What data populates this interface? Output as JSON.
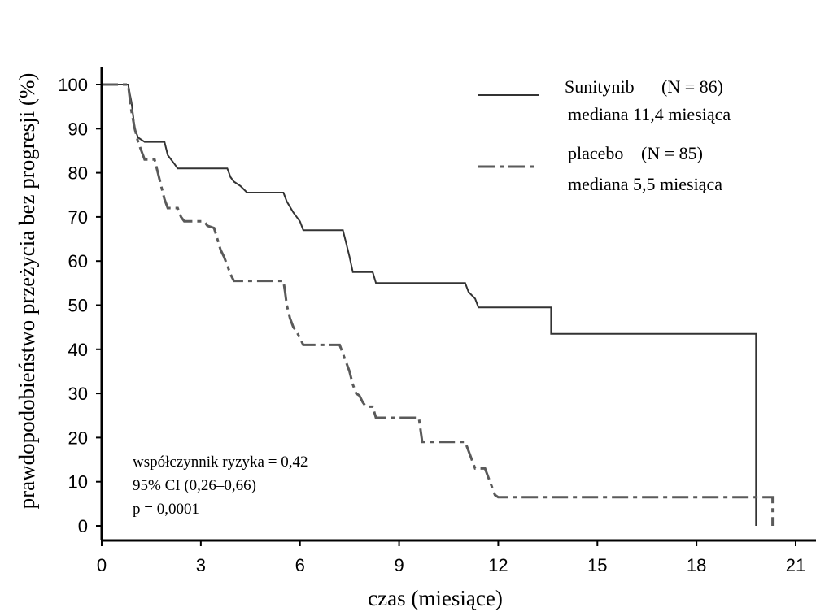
{
  "chart_data": {
    "type": "line",
    "xlabel": "czas (miesiące)",
    "ylabel": "prawdopodobieństwo przeżycia bez progresji (%)",
    "xlim": [
      0,
      21
    ],
    "ylim": [
      0,
      100
    ],
    "x_ticks": [
      "0",
      "3",
      "6",
      "9",
      "12",
      "15",
      "18",
      "21"
    ],
    "y_ticks": [
      "0",
      "10",
      "20",
      "30",
      "40",
      "50",
      "60",
      "70",
      "80",
      "90",
      "100"
    ],
    "grid": false,
    "legend_position": "top-right",
    "series": [
      {
        "name": "Sunitynib",
        "n_label": "(N = 86)",
        "median_label": "mediana 11,4 miesiąca",
        "color": "#333333",
        "style": "solid",
        "points": [
          [
            0,
            100
          ],
          [
            0.8,
            100
          ],
          [
            0.85,
            98
          ],
          [
            0.9,
            96
          ],
          [
            0.95,
            93
          ],
          [
            1.0,
            90
          ],
          [
            1.05,
            89
          ],
          [
            1.1,
            88
          ],
          [
            1.3,
            87
          ],
          [
            1.9,
            87
          ],
          [
            2.0,
            84
          ],
          [
            2.2,
            82
          ],
          [
            2.3,
            81
          ],
          [
            3.8,
            81
          ],
          [
            3.9,
            79
          ],
          [
            4.0,
            78
          ],
          [
            4.2,
            77
          ],
          [
            4.4,
            75.5
          ],
          [
            5.5,
            75.5
          ],
          [
            5.6,
            73.5
          ],
          [
            5.8,
            71
          ],
          [
            6.0,
            69
          ],
          [
            6.1,
            67
          ],
          [
            7.3,
            67
          ],
          [
            7.4,
            64
          ],
          [
            7.5,
            61
          ],
          [
            7.6,
            57.5
          ],
          [
            8.2,
            57.5
          ],
          [
            8.3,
            55
          ],
          [
            11.0,
            55
          ],
          [
            11.1,
            53
          ],
          [
            11.3,
            51.5
          ],
          [
            11.4,
            49.5
          ],
          [
            13.6,
            49.5
          ],
          [
            13.6,
            43.5
          ],
          [
            19.8,
            43.5
          ],
          [
            19.8,
            0
          ]
        ]
      },
      {
        "name": "placebo",
        "n_label": "(N = 85)",
        "median_label": "mediana 5,5 miesiąca",
        "color": "#5a5a5a",
        "style": "dashed",
        "points": [
          [
            0,
            100
          ],
          [
            0.8,
            100
          ],
          [
            0.85,
            97
          ],
          [
            0.9,
            94
          ],
          [
            1.0,
            90
          ],
          [
            1.1,
            87
          ],
          [
            1.2,
            85
          ],
          [
            1.3,
            83
          ],
          [
            1.6,
            83
          ],
          [
            1.7,
            80
          ],
          [
            1.8,
            77
          ],
          [
            1.9,
            74
          ],
          [
            2.0,
            72
          ],
          [
            2.3,
            72
          ],
          [
            2.4,
            70
          ],
          [
            2.5,
            69
          ],
          [
            3.1,
            69
          ],
          [
            3.2,
            68
          ],
          [
            3.4,
            67.5
          ],
          [
            3.5,
            65
          ],
          [
            3.6,
            62.5
          ],
          [
            3.7,
            61
          ],
          [
            3.8,
            59
          ],
          [
            3.9,
            57
          ],
          [
            4.0,
            55.5
          ],
          [
            5.5,
            55.5
          ],
          [
            5.55,
            53
          ],
          [
            5.6,
            50
          ],
          [
            5.7,
            47
          ],
          [
            5.8,
            45
          ],
          [
            5.9,
            44
          ],
          [
            6.0,
            42.5
          ],
          [
            6.1,
            41
          ],
          [
            7.2,
            41
          ],
          [
            7.3,
            39
          ],
          [
            7.4,
            37
          ],
          [
            7.5,
            35
          ],
          [
            7.6,
            32
          ],
          [
            7.7,
            30
          ],
          [
            7.8,
            29.5
          ],
          [
            7.9,
            28
          ],
          [
            8.0,
            27
          ],
          [
            8.2,
            27
          ],
          [
            8.3,
            24.5
          ],
          [
            9.6,
            24.5
          ],
          [
            9.7,
            19
          ],
          [
            11.0,
            19
          ],
          [
            11.1,
            17
          ],
          [
            11.2,
            15
          ],
          [
            11.3,
            13
          ],
          [
            11.6,
            13
          ],
          [
            11.7,
            11
          ],
          [
            11.8,
            9
          ],
          [
            11.9,
            7
          ],
          [
            12.0,
            6.5
          ],
          [
            20.3,
            6.5
          ],
          [
            20.3,
            0
          ]
        ]
      }
    ],
    "annotations": {
      "line1": "współczynnik ryzyka = 0,42",
      "line2": "95% CI (0,26–0,66)",
      "line3": "p = 0,0001"
    }
  }
}
